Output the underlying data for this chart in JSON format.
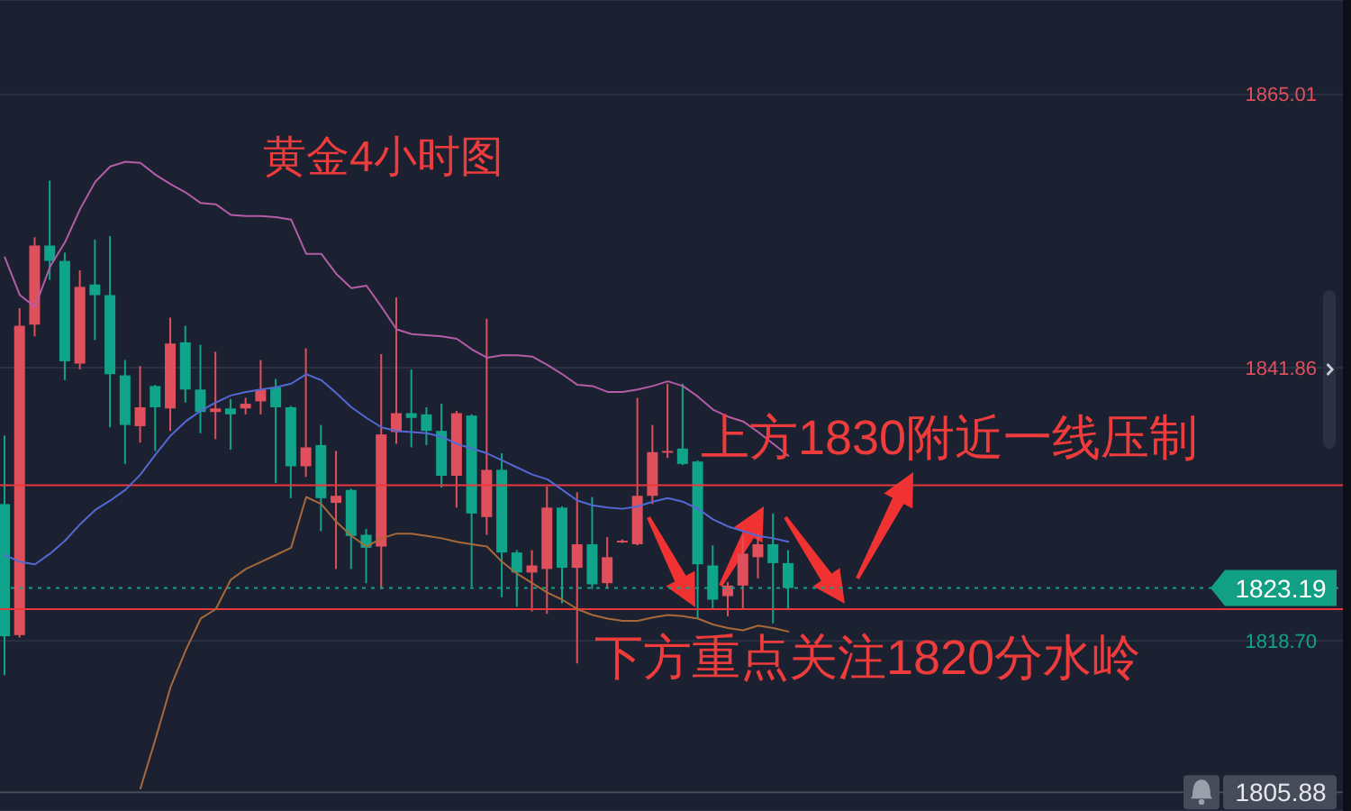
{
  "chart_data": {
    "type": "candlestick",
    "title": "黄金4小时图",
    "annotations": [
      "上方1830附近一线压制",
      "下方重点关注1820分水岭"
    ],
    "categories": [
      null,
      null,
      null,
      null,
      null,
      null,
      null,
      null,
      null,
      null,
      null,
      null,
      null,
      null,
      null,
      null,
      null,
      null,
      null,
      null,
      null,
      null,
      null,
      null,
      null,
      null,
      null,
      null,
      null,
      null,
      null,
      null,
      null,
      null,
      null,
      null,
      null,
      null,
      null,
      null,
      null,
      null,
      null,
      null,
      null,
      null,
      null,
      null,
      null,
      null,
      null,
      null,
      null
    ],
    "ohlc": [
      [
        1830.3,
        1836.1,
        1815.8,
        1819.1
      ],
      [
        1819.2,
        1846.9,
        1819.0,
        1845.4
      ],
      [
        1845.5,
        1852.9,
        1844.5,
        1852.2
      ],
      [
        1852.2,
        1857.7,
        1849.3,
        1850.9
      ],
      [
        1850.9,
        1851.6,
        1840.8,
        1842.4
      ],
      [
        1842.2,
        1850.1,
        1841.7,
        1848.7
      ],
      [
        1848.9,
        1852.7,
        1844.2,
        1848.0
      ],
      [
        1848.0,
        1853.0,
        1836.8,
        1841.3
      ],
      [
        1841.2,
        1842.5,
        1833.7,
        1837.0
      ],
      [
        1836.9,
        1842.0,
        1835.5,
        1838.5
      ],
      [
        1840.3,
        1840.4,
        1834.8,
        1838.5
      ],
      [
        1838.4,
        1846.1,
        1836.5,
        1843.9
      ],
      [
        1844.0,
        1845.4,
        1838.9,
        1840.0
      ],
      [
        1840.0,
        1843.8,
        1836.3,
        1838.1
      ],
      [
        1838.1,
        1843.2,
        1835.8,
        1838.4
      ],
      [
        1838.4,
        1839.2,
        1834.9,
        1837.9
      ],
      [
        1838.4,
        1839.3,
        1837.9,
        1838.8
      ],
      [
        1839.0,
        1842.5,
        1837.9,
        1840.0
      ],
      [
        1840.2,
        1840.9,
        1832.1,
        1838.5
      ],
      [
        1838.5,
        1838.6,
        1830.8,
        1833.5
      ],
      [
        1833.5,
        1843.5,
        1832.6,
        1835.1
      ],
      [
        1835.3,
        1837.0,
        1828.0,
        1830.8
      ],
      [
        1830.4,
        1834.8,
        1824.8,
        1831.0
      ],
      [
        1831.5,
        1831.6,
        1824.8,
        1827.6
      ],
      [
        1827.7,
        1828.2,
        1823.6,
        1826.6
      ],
      [
        1826.7,
        1843.0,
        1823.1,
        1836.2
      ],
      [
        1836.4,
        1847.8,
        1835.4,
        1838.0
      ],
      [
        1838.0,
        1841.7,
        1835.1,
        1837.6
      ],
      [
        1837.9,
        1838.5,
        1835.3,
        1836.5
      ],
      [
        1836.5,
        1838.8,
        1831.7,
        1832.7
      ],
      [
        1832.7,
        1838.2,
        1830.0,
        1838.0
      ],
      [
        1837.8,
        1837.9,
        1823.3,
        1829.5
      ],
      [
        1829.2,
        1846.0,
        1827.7,
        1833.2
      ],
      [
        1833.2,
        1834.6,
        1822.4,
        1826.2
      ],
      [
        1826.2,
        1826.4,
        1821.6,
        1824.5
      ],
      [
        1824.5,
        1826.4,
        1821.2,
        1825.1
      ],
      [
        1824.8,
        1831.8,
        1821.0,
        1830.0
      ],
      [
        1830.0,
        1830.1,
        1821.9,
        1824.9
      ],
      [
        1824.9,
        1831.3,
        1816.8,
        1826.9
      ],
      [
        1826.9,
        1830.9,
        1823.1,
        1823.5
      ],
      [
        1823.6,
        1827.5,
        1823.2,
        1825.8
      ],
      [
        1827.1,
        1827.3,
        1827.0,
        1827.2
      ],
      [
        1826.9,
        1839.3,
        1826.8,
        1831.0
      ],
      [
        1831.0,
        1837.0,
        1830.3,
        1834.7
      ],
      [
        1834.7,
        1840.5,
        1834.2,
        1834.8
      ],
      [
        1835.0,
        1840.5,
        1833.6,
        1833.7
      ],
      [
        1833.9,
        1834.0,
        1820.6,
        1825.2
      ],
      [
        1825.1,
        1826.8,
        1821.4,
        1822.2
      ],
      [
        1822.5,
        1823.7,
        1820.8,
        1823.4
      ],
      [
        1823.4,
        1827.7,
        1821.4,
        1826.1
      ],
      [
        1825.8,
        1827.8,
        1824.0,
        1826.9
      ],
      [
        1826.9,
        1829.5,
        1820.2,
        1825.3
      ],
      [
        1825.3,
        1826.4,
        1821.4,
        1823.19
      ]
    ],
    "colors": [
      "#10a58a",
      "#e0505c",
      "#e0505c",
      "#10a58a",
      "#10a58a",
      "#e0505c",
      "#10a58a",
      "#10a58a",
      "#10a58a",
      "#e0505c",
      "#10a58a",
      "#e0505c",
      "#10a58a",
      "#10a58a",
      "#e0505c",
      "#10a58a",
      "#e0505c",
      "#e0505c",
      "#10a58a",
      "#10a58a",
      "#e0505c",
      "#10a58a",
      "#e0505c",
      "#10a58a",
      "#10a58a",
      "#e0505c",
      "#e0505c",
      "#10a58a",
      "#10a58a",
      "#10a58a",
      "#e0505c",
      "#10a58a",
      "#e0505c",
      "#10a58a",
      "#10a58a",
      "#e0505c",
      "#e0505c",
      "#10a58a",
      "#e0505c",
      "#10a58a",
      "#e0505c",
      "#e0505c",
      "#e0505c",
      "#e0505c",
      "#e0505c",
      "#10a58a",
      "#10a58a",
      "#10a58a",
      "#e0505c",
      "#e0505c",
      "#e0505c",
      "#10a58a",
      "#10a58a"
    ],
    "series": [
      {
        "type": "line",
        "color": "#b45ca6",
        "values": [
          1851.2,
          1848.0,
          1847.0,
          1850.4,
          1852.5,
          1855.3,
          1857.6,
          1858.9,
          1859.3,
          1859.2,
          1858.2,
          1857.4,
          1856.7,
          1855.8,
          1855.7,
          1854.8,
          1854.7,
          1854.7,
          1854.6,
          1854.4,
          1851.5,
          1851.5,
          1849.8,
          1848.6,
          1848.8,
          1847.0,
          1845.1,
          1844.7,
          1844.6,
          1844.5,
          1844.3,
          1843.4,
          1842.7,
          1842.9,
          1842.9,
          1842.8,
          1842.1,
          1841.3,
          1840.4,
          1840.3,
          1839.8,
          1839.8,
          1840.0,
          1840.3,
          1840.7,
          1840.3,
          1839.4,
          1838.3,
          1837.7,
          1837.3,
          1836.4,
          1835.4,
          1834.4
        ]
      },
      {
        "type": "line",
        "color": "#5468d4",
        "values": [
          1826.0,
          1825.4,
          1825.2,
          1826.1,
          1827.2,
          1828.6,
          1829.8,
          1830.6,
          1831.5,
          1832.8,
          1834.5,
          1836.1,
          1837.3,
          1838.2,
          1838.9,
          1839.5,
          1839.8,
          1840.0,
          1840.2,
          1840.5,
          1841.3,
          1840.8,
          1839.7,
          1838.5,
          1837.6,
          1836.8,
          1836.5,
          1836.4,
          1836.3,
          1836.0,
          1835.4,
          1835.0,
          1834.6,
          1834.0,
          1833.4,
          1832.8,
          1832.4,
          1831.5,
          1830.6,
          1830.2,
          1830.0,
          1829.9,
          1830.1,
          1830.5,
          1830.8,
          1830.5,
          1829.9,
          1829.0,
          1828.4,
          1828.0,
          1827.6,
          1827.4,
          1827.1
        ]
      },
      {
        "type": "line",
        "color": "#a8693a",
        "values": [
          null,
          null,
          null,
          null,
          null,
          null,
          null,
          null,
          null,
          1806.2,
          1810.4,
          1814.8,
          1817.9,
          1820.6,
          1821.4,
          1823.9,
          1824.8,
          1825.4,
          1826.0,
          1826.6,
          1830.9,
          1830.3,
          1828.8,
          1827.6,
          1826.7,
          1827.4,
          1827.8,
          1827.8,
          1827.6,
          1827.4,
          1827.1,
          1826.9,
          1826.7,
          1825.4,
          1824.4,
          1823.6,
          1822.8,
          1822.2,
          1821.4,
          1820.9,
          1820.6,
          1820.4,
          1820.4,
          1820.7,
          1820.9,
          1820.8,
          1820.6,
          1820.1,
          1819.8,
          1819.6,
          1820.0,
          1819.8,
          1819.5
        ]
      }
    ],
    "ylim": [
      1804.3,
      1873.0
    ],
    "yticks": [
      1865.01,
      1841.86,
      {
        "value": 1818.7,
        "label": "1818.70"
      }
    ],
    "tick_labels": "y",
    "grid": "y",
    "marker": "none",
    "ref_lines": [
      {
        "axis": "y",
        "value": 1831.9,
        "color": "#e8383d"
      },
      {
        "axis": "y",
        "value": 1821.4,
        "color": "#e8383d"
      },
      {
        "axis": "y",
        "value": 1823.19,
        "label": "1823.19",
        "color": "#12a085",
        "line_style": "dotted"
      },
      {
        "axis": "y",
        "value": 1805.88,
        "label": "1805.88",
        "color": "#454b58"
      }
    ]
  }
}
